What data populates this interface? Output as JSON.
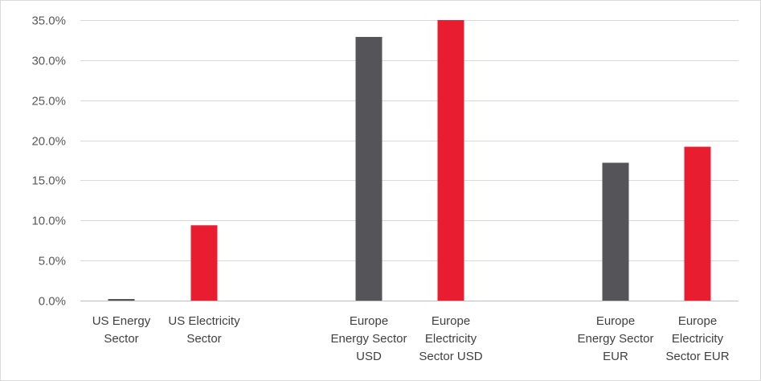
{
  "chart_data": {
    "type": "bar",
    "title": "",
    "xlabel": "",
    "ylabel": "",
    "ylim": [
      0,
      35
    ],
    "y_ticks": [
      "0.0%",
      "5.0%",
      "10.0%",
      "15.0%",
      "20.0%",
      "25.0%",
      "30.0%",
      "35.0%"
    ],
    "grid": true,
    "legend": "none",
    "groups": [
      {
        "lines": [
          "US Energy",
          "Sector"
        ],
        "value": 0.2,
        "color": "#545459"
      },
      {
        "lines": [
          "US Electricity",
          "Sector"
        ],
        "value": 9.4,
        "color": "#e81e30"
      },
      {
        "lines": [
          "Europe",
          "Energy Sector",
          "USD"
        ],
        "value": 32.9,
        "color": "#545459"
      },
      {
        "lines": [
          "Europe",
          "Electricity",
          "Sector USD"
        ],
        "value": 35.0,
        "color": "#e81e30"
      },
      {
        "lines": [
          "Europe",
          "Energy Sector",
          "EUR"
        ],
        "value": 17.2,
        "color": "#545459"
      },
      {
        "lines": [
          "Europe",
          "Electricity",
          "Sector EUR"
        ],
        "value": 19.2,
        "color": "#e81e30"
      }
    ]
  }
}
